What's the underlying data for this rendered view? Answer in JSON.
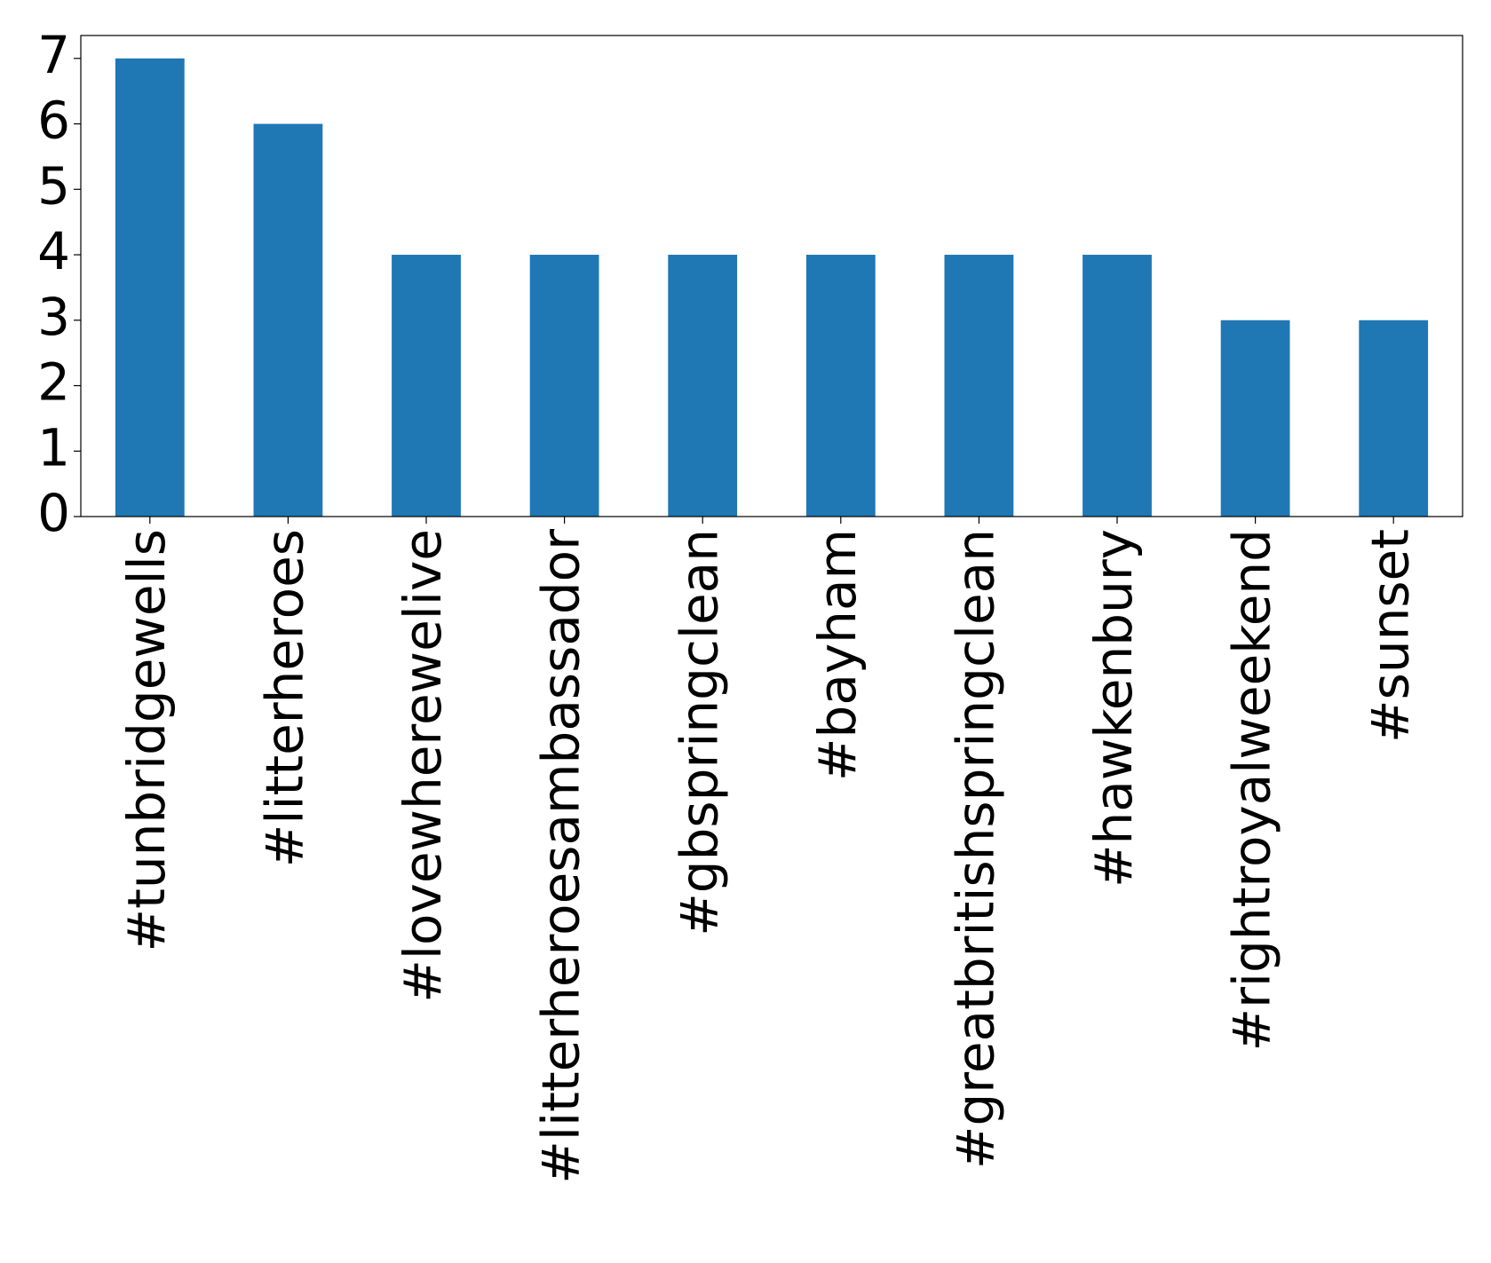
{
  "chart_data": {
    "type": "bar",
    "categories": [
      "#tunbridgewells",
      "#litterheroes",
      "#lovewherewelive",
      "#litterheroesambassador",
      "#gbspringclean",
      "#bayham",
      "#greatbritishspringclean",
      "#hawkenbury",
      "#rightroyalweekend",
      "#sunset"
    ],
    "values": [
      7,
      6,
      4,
      4,
      4,
      4,
      4,
      4,
      3,
      3
    ],
    "color": "#1f77b4",
    "ylim": [
      0,
      7.35
    ],
    "yticks": [
      0,
      1,
      2,
      3,
      4,
      5,
      6,
      7
    ],
    "grid": false
  }
}
